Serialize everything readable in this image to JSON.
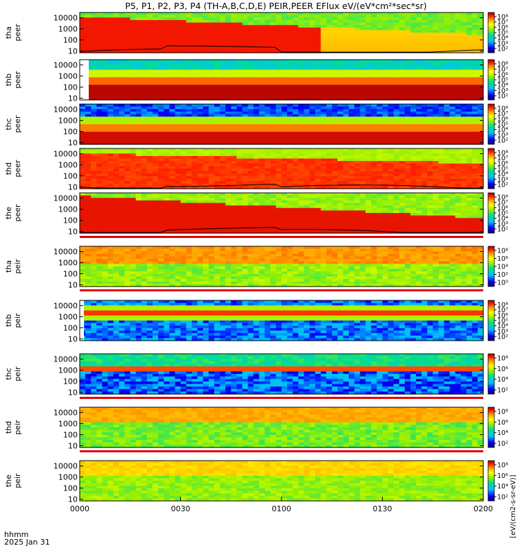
{
  "title": "P5, P1, P2, P3, P4 (TH-A,B,C,D,E) PEIR,PEER EFlux eV/(eV*cm²*sec*sr)",
  "footer": {
    "time_unit": "hhmm",
    "date": "2025 Jan 31"
  },
  "colorbar_label": "[eV/(cm2-s-sr-eV)]",
  "chart_data": [
    {
      "type": "heatmap",
      "probe": "tha",
      "species": "peer",
      "ylabel": [
        "tha",
        "peer"
      ],
      "yscale": "log",
      "ylim": [
        7,
        30000
      ],
      "yticks": [
        "10000",
        "1000",
        "100",
        "10"
      ],
      "x": [
        "0000",
        "0030",
        "0100",
        "0130",
        "0200"
      ],
      "colorbar_ticks": [
        "10⁸",
        "10⁷",
        "10⁶",
        "10⁵",
        "10⁴",
        "10³",
        "10²"
      ],
      "overlay_line": true
    },
    {
      "type": "heatmap",
      "probe": "thb",
      "species": "peer",
      "ylabel": [
        "thb",
        "peer"
      ],
      "yscale": "log",
      "ylim": [
        7,
        30000
      ],
      "yticks": [
        "10000",
        "1000",
        "100",
        "10"
      ],
      "x": [
        "0000",
        "0030",
        "0100",
        "0130",
        "0200"
      ],
      "colorbar_ticks": [
        "10⁸",
        "10⁷",
        "10⁶",
        "10⁵",
        "10⁴",
        "10³",
        "10²"
      ],
      "overlay_line": false
    },
    {
      "type": "heatmap",
      "probe": "thc",
      "species": "peer",
      "ylabel": [
        "thc",
        "peer"
      ],
      "yscale": "log",
      "ylim": [
        7,
        30000
      ],
      "yticks": [
        "10000",
        "1000",
        "100",
        "10"
      ],
      "x": [
        "0000",
        "0030",
        "0100",
        "0130",
        "0200"
      ],
      "colorbar_ticks": [
        "10⁸",
        "10⁷",
        "10⁶",
        "10⁵",
        "10⁴",
        "10³",
        "10²"
      ],
      "overlay_line": false
    },
    {
      "type": "heatmap",
      "probe": "thd",
      "species": "peer",
      "ylabel": [
        "thd",
        "peer"
      ],
      "yscale": "log",
      "ylim": [
        7,
        30000
      ],
      "yticks": [
        "10000",
        "1000",
        "100",
        "10"
      ],
      "x": [
        "0000",
        "0030",
        "0100",
        "0130",
        "0200"
      ],
      "colorbar_ticks": [
        "10⁸",
        "10⁷",
        "10⁶",
        "10⁵",
        "10⁴",
        "10³",
        "10²"
      ],
      "overlay_line": true
    },
    {
      "type": "heatmap",
      "probe": "the",
      "species": "peer",
      "ylabel": [
        "the",
        "peer"
      ],
      "yscale": "log",
      "ylim": [
        7,
        30000
      ],
      "yticks": [
        "10000",
        "1000",
        "100",
        "10"
      ],
      "x": [
        "0000",
        "0030",
        "0100",
        "0130",
        "0200"
      ],
      "colorbar_ticks": [
        "10⁸",
        "10⁷",
        "10⁶",
        "10⁵",
        "10⁴",
        "10³",
        "10²"
      ],
      "overlay_line": true
    },
    {
      "type": "heatmap",
      "probe": "tha",
      "species": "peir",
      "ylabel": [
        "tha",
        "peir"
      ],
      "yscale": "log",
      "ylim": [
        7,
        30000
      ],
      "yticks": [
        "10000",
        "1000",
        "100",
        "10"
      ],
      "x": [
        "0000",
        "0030",
        "0100",
        "0130",
        "0200"
      ],
      "colorbar_ticks": [
        "10⁸",
        "10⁶",
        "10⁴",
        "10²",
        "10⁰"
      ],
      "overlay_line": false
    },
    {
      "type": "heatmap",
      "probe": "thb",
      "species": "peir",
      "ylabel": [
        "thb",
        "peir"
      ],
      "yscale": "log",
      "ylim": [
        7,
        30000
      ],
      "yticks": [
        "10000",
        "1000",
        "100",
        "10"
      ],
      "x": [
        "0000",
        "0030",
        "0100",
        "0130",
        "0200"
      ],
      "colorbar_ticks": [
        "10⁸",
        "10⁷",
        "10⁶",
        "10⁵",
        "10⁴",
        "10³",
        "10²"
      ],
      "overlay_line": false
    },
    {
      "type": "heatmap",
      "probe": "thc",
      "species": "peir",
      "ylabel": [
        "thc",
        "peir"
      ],
      "yscale": "log",
      "ylim": [
        7,
        30000
      ],
      "yticks": [
        "10000",
        "1000",
        "100",
        "10"
      ],
      "x": [
        "0000",
        "0030",
        "0100",
        "0130",
        "0200"
      ],
      "colorbar_ticks": [
        "10⁸",
        "10⁶",
        "10⁴",
        "10²"
      ],
      "overlay_line": false
    },
    {
      "type": "heatmap",
      "probe": "thd",
      "species": "peir",
      "ylabel": [
        "thd",
        "peir"
      ],
      "yscale": "log",
      "ylim": [
        7,
        30000
      ],
      "yticks": [
        "10000",
        "1000",
        "100",
        "10"
      ],
      "x": [
        "0000",
        "0030",
        "0100",
        "0130",
        "0200"
      ],
      "colorbar_ticks": [
        "10⁸",
        "10⁶",
        "10⁴",
        "10²"
      ],
      "overlay_line": false
    },
    {
      "type": "heatmap",
      "probe": "the",
      "species": "peir",
      "ylabel": [
        "the",
        "peir"
      ],
      "yscale": "log",
      "ylim": [
        7,
        30000
      ],
      "yticks": [
        "10000",
        "1000",
        "100",
        "10"
      ],
      "x": [
        "0000",
        "0030",
        "0100",
        "0130",
        "0200"
      ],
      "colorbar_ticks": [
        "10⁸",
        "10⁶",
        "10⁴",
        "10²"
      ],
      "overlay_line": false
    }
  ]
}
